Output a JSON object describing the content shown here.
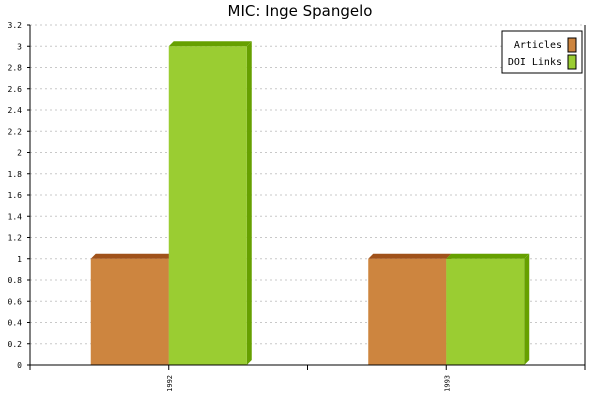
{
  "chart_data": {
    "type": "bar",
    "title": "MIC: Inge Spangelo",
    "categories": [
      "1992",
      "1993"
    ],
    "series": [
      {
        "name": "Articles",
        "values": [
          1,
          1
        ],
        "color": "#cd853f",
        "top_color": "#a0521a"
      },
      {
        "name": "DOI Links",
        "values": [
          3,
          1
        ],
        "color": "#9acd32",
        "top_color": "#66a000"
      }
    ],
    "ylim": [
      0,
      3.2
    ],
    "yticks": [
      "0",
      "0.2",
      "0.4",
      "0.6",
      "0.8",
      "1",
      "1.2",
      "1.4",
      "1.6",
      "1.8",
      "2",
      "2.2",
      "2.4",
      "2.6",
      "2.8",
      "3",
      "3.2"
    ],
    "grid": true,
    "legend_position": "top-right"
  }
}
